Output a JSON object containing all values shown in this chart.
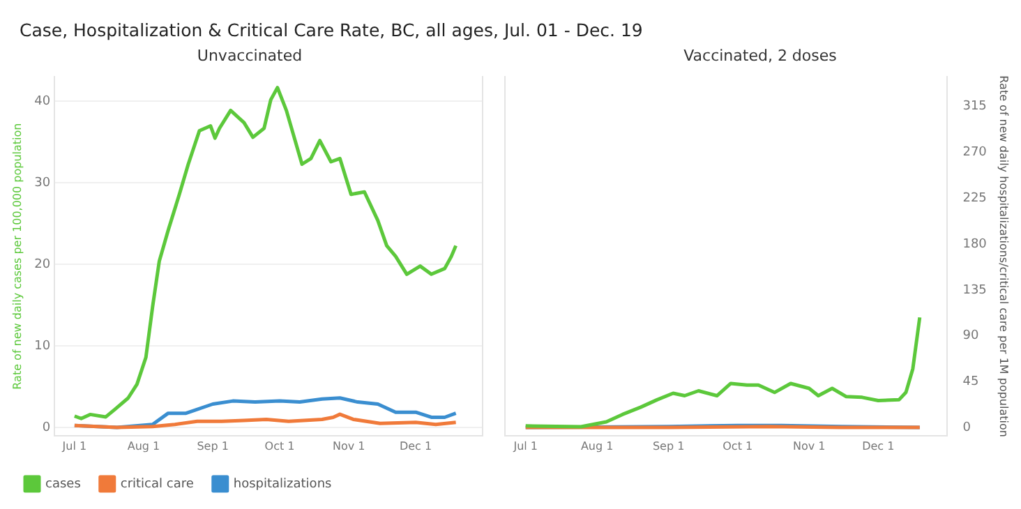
{
  "chart_data": [
    {
      "type": "line",
      "title": "Case, Hospitalization & Critical Care Rate, BC, all ages, Jul. 01 - Dec. 19",
      "subtitle": "Unvaccinated",
      "ylabel": "Rate of new daily cases per 100,000 population",
      "xlim": [
        "--06-22",
        "--12-31"
      ],
      "xticks": [
        {
          "value": "--07-01",
          "label": "Jul 1"
        },
        {
          "value": "--08-01",
          "label": "Aug 1"
        },
        {
          "value": "--09-01",
          "label": "Sep 1"
        },
        {
          "value": "--10-01",
          "label": "Oct 1"
        },
        {
          "value": "--11-01",
          "label": "Nov 1"
        },
        {
          "value": "--12-01",
          "label": "Dec 1"
        }
      ],
      "ylim": [
        -1,
        43
      ],
      "yticks": [
        0,
        10,
        20,
        30,
        40
      ],
      "y2lim": [
        -8,
        344
      ],
      "grid": "y",
      "legend": "bottom left",
      "tick_labels": [
        "x",
        "y"
      ],
      "marker": "none",
      "line_style": "solid",
      "series": [
        {
          "name": "cases",
          "color": "#5cc83b",
          "x": [
            "--07-01",
            "--07-04",
            "--07-08",
            "--07-15",
            "--07-19",
            "--07-25",
            "--07-29",
            "--08-02",
            "--08-05",
            "--08-08",
            "--08-12",
            "--08-17",
            "--08-21",
            "--08-26",
            "--08-31",
            "--09-02",
            "--09-04",
            "--09-09",
            "--09-15",
            "--09-19",
            "--09-24",
            "--09-27",
            "--09-30",
            "--10-04",
            "--10-11",
            "--10-15",
            "--10-19",
            "--10-24",
            "--10-28",
            "--11-02",
            "--11-08",
            "--11-14",
            "--11-18",
            "--11-22",
            "--11-27",
            "--12-03",
            "--12-08",
            "--12-14",
            "--12-17",
            "--12-19"
          ],
          "values": [
            1.4,
            1.1,
            1.6,
            1.3,
            2.2,
            3.6,
            5.3,
            8.6,
            14.8,
            20.4,
            24.2,
            28.6,
            32.3,
            36.4,
            37.0,
            35.5,
            36.7,
            38.9,
            37.4,
            35.6,
            36.7,
            40.2,
            41.7,
            38.9,
            32.3,
            33.0,
            35.2,
            32.6,
            33.0,
            28.6,
            28.9,
            25.4,
            22.3,
            21.0,
            18.8,
            19.8,
            18.8,
            19.5,
            21.0,
            22.3
          ]
        },
        {
          "name": "critical care",
          "color": "#f07a3a",
          "axis": "y2",
          "x": [
            "--07-01",
            "--07-20",
            "--08-05",
            "--08-15",
            "--08-25",
            "--09-05",
            "--09-15",
            "--09-25",
            "--10-05",
            "--10-20",
            "--10-25",
            "--10-28",
            "--11-03",
            "--11-15",
            "--12-01",
            "--12-10",
            "--12-19"
          ],
          "values": [
            2,
            0,
            1,
            3,
            6,
            6,
            7,
            8,
            6,
            8,
            10,
            13,
            8,
            4,
            5,
            3,
            5
          ]
        },
        {
          "name": "hospitalizations",
          "color": "#3a8ed0",
          "axis": "y2",
          "x": [
            "--07-01",
            "--07-20",
            "--08-05",
            "--08-12",
            "--08-20",
            "--09-01",
            "--09-10",
            "--09-20",
            "--10-01",
            "--10-10",
            "--10-20",
            "--10-28",
            "--11-05",
            "--11-14",
            "--11-22",
            "--12-01",
            "--12-08",
            "--12-14",
            "--12-19"
          ],
          "values": [
            2,
            0,
            3,
            14,
            14,
            23,
            26,
            25,
            26,
            25,
            28,
            29,
            25,
            23,
            15,
            15,
            10,
            10,
            14
          ]
        }
      ]
    },
    {
      "type": "line",
      "subtitle": "Vaccinated, 2 doses",
      "y2label": "Rate of new daily hospitalizations/critical care per 1M population",
      "xlim": [
        "--06-22",
        "--12-31"
      ],
      "xticks": [
        {
          "value": "--07-01",
          "label": "Jul 1"
        },
        {
          "value": "--08-01",
          "label": "Aug 1"
        },
        {
          "value": "--09-01",
          "label": "Sep 1"
        },
        {
          "value": "--10-01",
          "label": "Oct 1"
        },
        {
          "value": "--11-01",
          "label": "Nov 1"
        },
        {
          "value": "--12-01",
          "label": "Dec 1"
        }
      ],
      "ylim": [
        -1,
        43
      ],
      "y2lim": [
        -8,
        344
      ],
      "y2ticks": [
        0,
        45,
        90,
        135,
        180,
        225,
        270,
        315
      ],
      "grid": "y",
      "tick_labels": [
        "x",
        "y2"
      ],
      "marker": "none",
      "line_style": "solid",
      "series": [
        {
          "color": "#5cc83b",
          "x": [
            "--07-01",
            "--07-25",
            "--08-05",
            "--08-12",
            "--08-20",
            "--08-27",
            "--09-03",
            "--09-08",
            "--09-14",
            "--09-22",
            "--09-28",
            "--10-05",
            "--10-10",
            "--10-17",
            "--10-24",
            "--11-01",
            "--11-05",
            "--11-11",
            "--11-17",
            "--11-24",
            "--12-01",
            "--12-10",
            "--12-13",
            "--12-16",
            "--12-19"
          ],
          "values": [
            0.2,
            0.1,
            0.7,
            1.6,
            2.5,
            3.4,
            4.2,
            3.9,
            4.5,
            3.9,
            5.4,
            5.2,
            5.2,
            4.3,
            5.4,
            4.8,
            3.9,
            4.8,
            3.8,
            3.7,
            3.3,
            3.4,
            4.3,
            7.2,
            13.5
          ]
        },
        {
          "color": "#f07a3a",
          "axis": "y2",
          "x": [
            "--07-01",
            "--09-01",
            "--10-15",
            "--11-15",
            "--12-19"
          ],
          "values": [
            0,
            0,
            1,
            0,
            0
          ]
        },
        {
          "color": "#3a8ed0",
          "axis": "y2",
          "x": [
            "--07-01",
            "--09-01",
            "--10-01",
            "--10-20",
            "--11-15",
            "--12-19"
          ],
          "values": [
            0,
            1,
            2,
            2,
            1,
            0
          ]
        }
      ]
    }
  ]
}
